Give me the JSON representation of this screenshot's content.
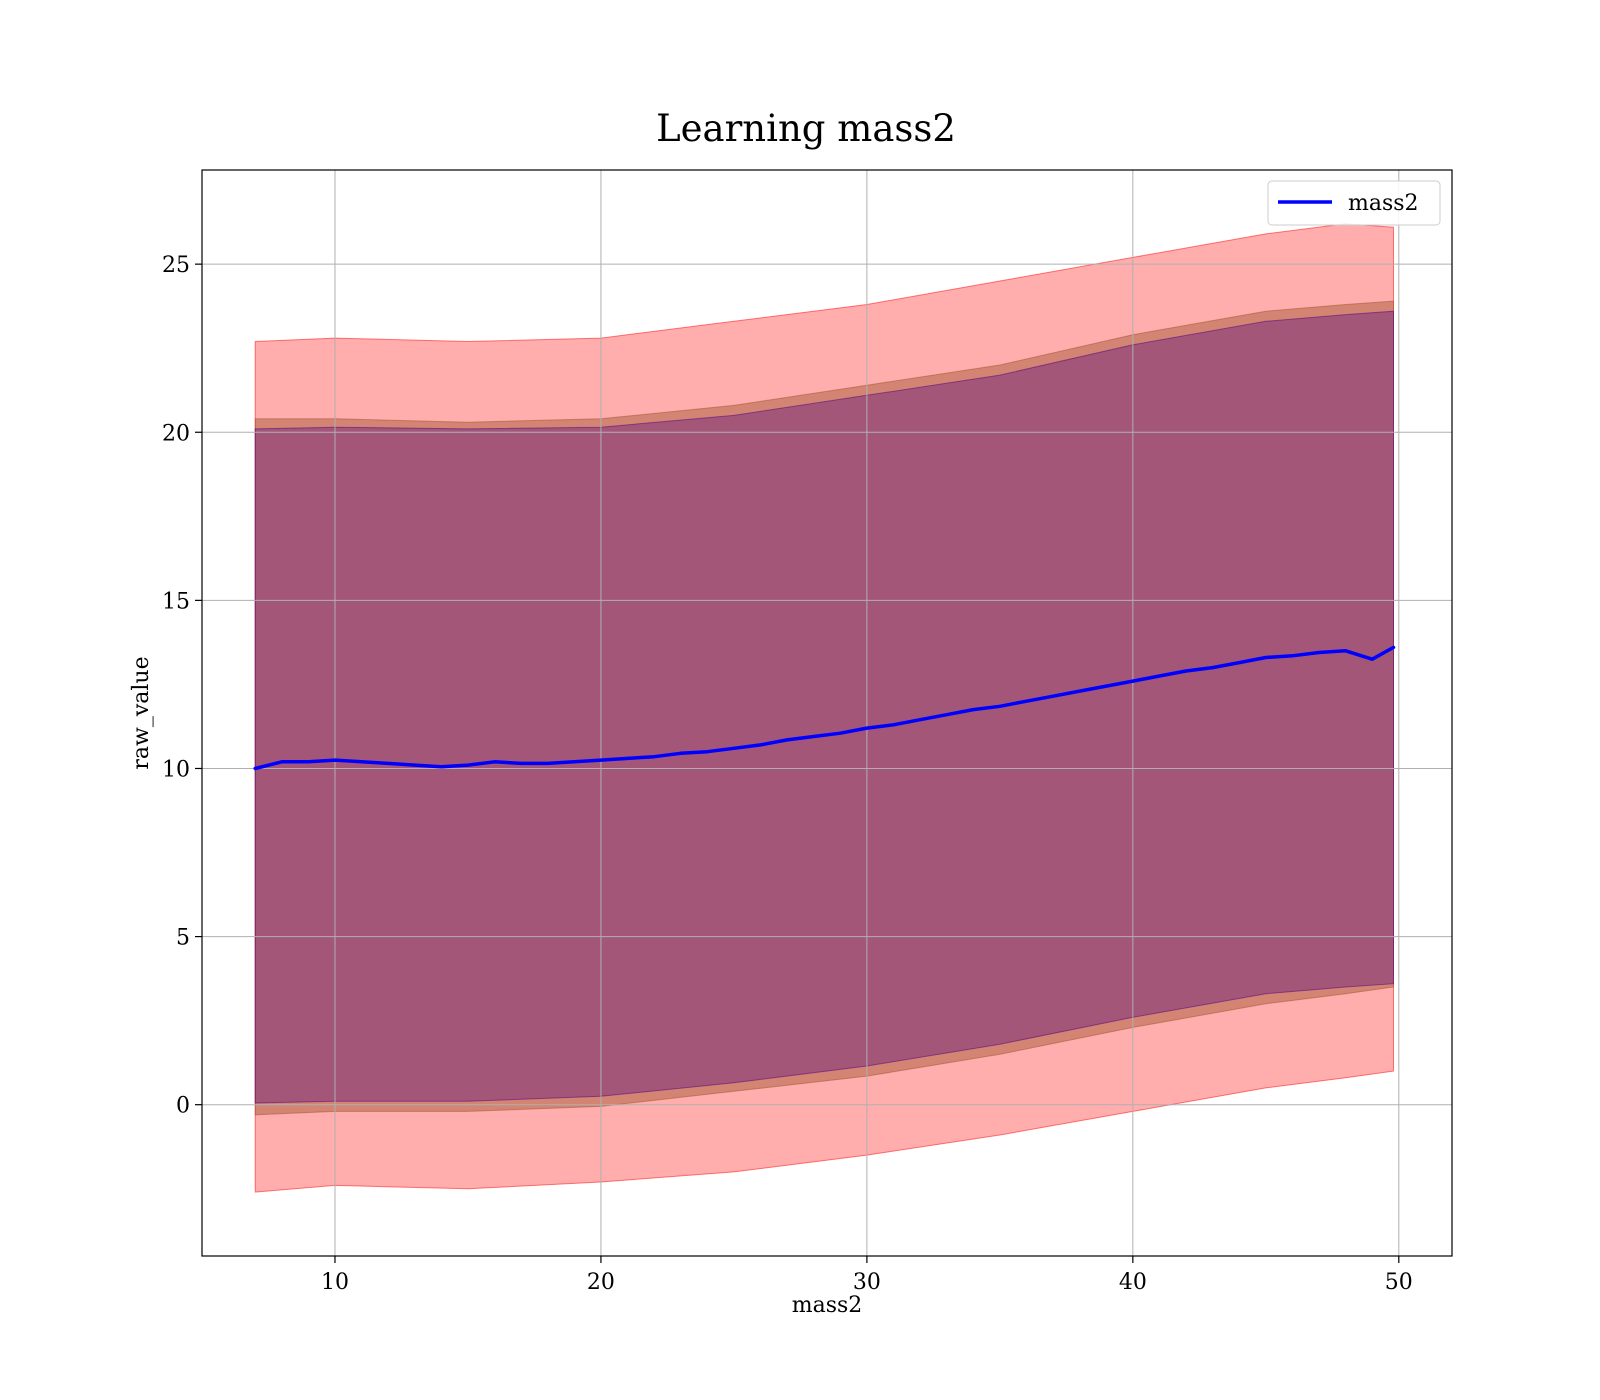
{
  "chart_data": {
    "type": "line",
    "title": "Learning mass2",
    "xlabel": "mass2",
    "ylabel": "raw_value",
    "xlim": [
      5,
      52
    ],
    "ylim": [
      -4.5,
      27.8
    ],
    "xticks": [
      10,
      20,
      30,
      40,
      50
    ],
    "yticks": [
      0,
      5,
      10,
      15,
      20,
      25
    ],
    "grid": true,
    "legend": {
      "placement": "upper-right",
      "entries": [
        "mass2"
      ]
    },
    "colors": {
      "line": "#0000ff",
      "outer_band": "#ff0000",
      "middle_band": "#a0522d",
      "inner_band": "#4b0082",
      "grid": "#b0b0b0"
    },
    "series": [
      {
        "name": "mass2",
        "x": [
          7,
          8,
          9,
          10,
          11,
          12,
          13,
          14,
          15,
          16,
          17,
          18,
          19,
          20,
          21,
          22,
          23,
          24,
          25,
          26,
          27,
          28,
          29,
          30,
          31,
          32,
          33,
          34,
          35,
          36,
          37,
          38,
          39,
          40,
          41,
          42,
          43,
          44,
          45,
          46,
          47,
          48,
          49,
          49.8
        ],
        "y": [
          10.0,
          10.2,
          10.2,
          10.25,
          10.2,
          10.15,
          10.1,
          10.05,
          10.1,
          10.2,
          10.15,
          10.15,
          10.2,
          10.25,
          10.3,
          10.35,
          10.45,
          10.5,
          10.6,
          10.7,
          10.85,
          10.95,
          11.05,
          11.2,
          11.3,
          11.45,
          11.6,
          11.75,
          11.85,
          12.0,
          12.15,
          12.3,
          12.45,
          12.6,
          12.75,
          12.9,
          13.0,
          13.15,
          13.3,
          13.35,
          13.45,
          13.5,
          13.25,
          13.6
        ]
      }
    ],
    "bands": [
      {
        "level": "outer",
        "x": [
          7,
          10,
          15,
          20,
          25,
          30,
          35,
          40,
          45,
          48,
          49.8
        ],
        "lower": [
          -2.6,
          -2.4,
          -2.5,
          -2.3,
          -2.0,
          -1.5,
          -0.9,
          -0.2,
          0.5,
          0.8,
          1.0
        ],
        "upper": [
          22.7,
          22.8,
          22.7,
          22.8,
          23.3,
          23.8,
          24.5,
          25.2,
          25.9,
          26.2,
          26.1
        ]
      },
      {
        "level": "middle",
        "x": [
          7,
          10,
          15,
          20,
          25,
          30,
          35,
          40,
          45,
          48,
          49.8
        ],
        "lower": [
          -0.3,
          -0.2,
          -0.2,
          -0.05,
          0.4,
          0.85,
          1.5,
          2.3,
          3.0,
          3.3,
          3.5
        ],
        "upper": [
          20.4,
          20.4,
          20.3,
          20.4,
          20.8,
          21.4,
          22.0,
          22.9,
          23.6,
          23.8,
          23.9
        ]
      },
      {
        "level": "inner",
        "x": [
          7,
          10,
          15,
          20,
          25,
          30,
          35,
          40,
          45,
          48,
          49.8
        ],
        "lower": [
          0.05,
          0.1,
          0.1,
          0.25,
          0.65,
          1.15,
          1.8,
          2.6,
          3.3,
          3.5,
          3.6
        ],
        "upper": [
          20.1,
          20.15,
          20.1,
          20.15,
          20.5,
          21.1,
          21.7,
          22.6,
          23.3,
          23.5,
          23.6
        ]
      }
    ]
  }
}
